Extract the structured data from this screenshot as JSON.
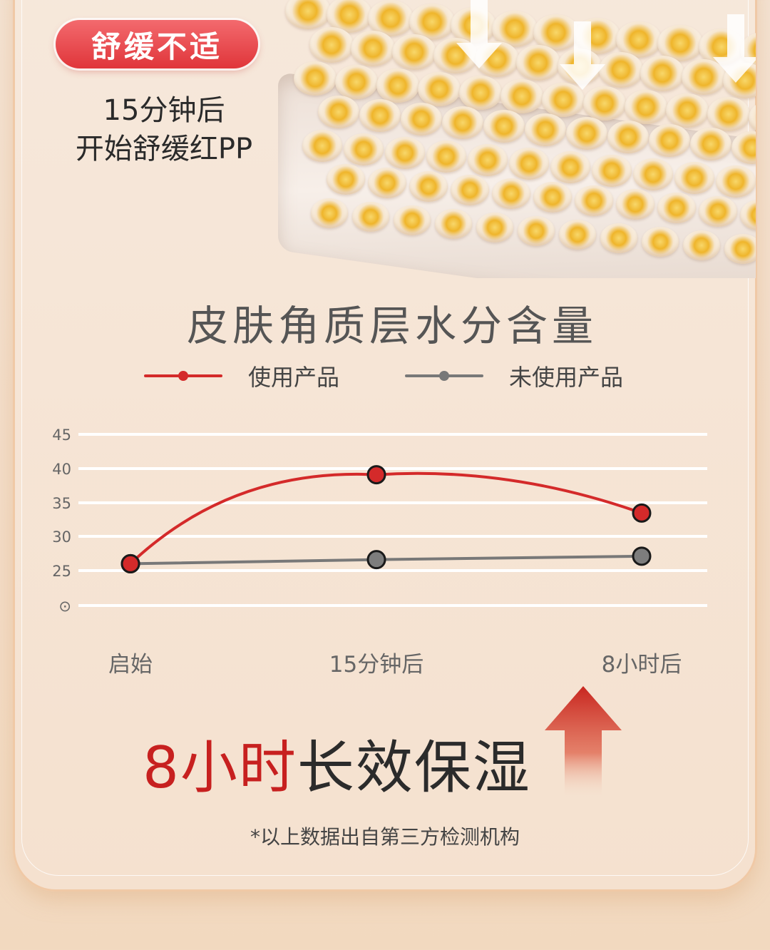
{
  "badge": {
    "label": "舒缓不适"
  },
  "subtitle": {
    "line1": "15分钟后",
    "line2": "开始舒缓红PP"
  },
  "colors": {
    "accent": "#d42a2a",
    "gray_series": "#787878",
    "badge": "#e6393e"
  },
  "chart_data": {
    "type": "line",
    "title": "皮肤角质层水分含量",
    "categories": [
      "启始",
      "15分钟后",
      "8小时后"
    ],
    "y_ticks": [
      "⊙",
      "25",
      "30",
      "35",
      "40",
      "45"
    ],
    "series": [
      {
        "name": "使用产品",
        "values": [
          26,
          39,
          33.4
        ],
        "color": "#d42a2a"
      },
      {
        "name": "未使用产品",
        "values": [
          26,
          26.6,
          27.1
        ],
        "color": "#787878"
      }
    ],
    "ylim": [
      20,
      45
    ],
    "grid": true,
    "legend": "top"
  },
  "headline": {
    "highlight": "8小时",
    "rest": "长效保湿"
  },
  "footnote": "*以上数据出自第三方检测机构",
  "icons": {
    "texture": "gel-bubble-image",
    "arrow": "up-arrow-icon"
  }
}
